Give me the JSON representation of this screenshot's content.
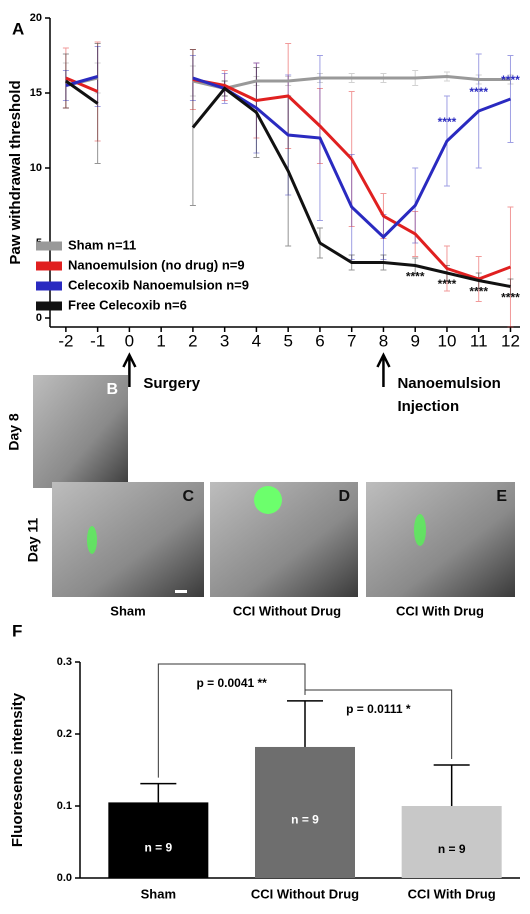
{
  "chart_data": [
    {
      "type": "line",
      "panel": "A",
      "y_label": "Paw withdrawal threshold",
      "x": [
        -2,
        -1,
        0,
        1,
        2,
        3,
        4,
        5,
        6,
        7,
        8,
        9,
        10,
        11,
        12
      ],
      "xlim": [
        -2.5,
        12.3
      ],
      "xticks": [
        -2,
        -1,
        0,
        1,
        2,
        3,
        4,
        5,
        6,
        7,
        8,
        9,
        10,
        11,
        12
      ],
      "ylim": [
        -0.6,
        20
      ],
      "yticks": [
        0,
        5,
        10,
        15,
        20
      ],
      "legend": "lower left",
      "series": [
        {
          "name": "Sham n=11",
          "color": "#999999",
          "values": [
            15.5,
            16.0,
            null,
            null,
            15.8,
            15.3,
            15.8,
            15.8,
            16.0,
            16.0,
            16.0,
            16.0,
            16.1,
            15.9,
            15.9
          ],
          "errors": [
            1.5,
            1.0,
            null,
            null,
            1.0,
            0.5,
            0.3,
            0.3,
            0.3,
            0.3,
            0.3,
            0.5,
            0.3,
            0.3,
            0.3
          ]
        },
        {
          "name": "Nanoemulsion (no drug) n=9",
          "color": "#e02020",
          "values": [
            16.0,
            15.1,
            null,
            null,
            15.9,
            15.5,
            14.5,
            14.8,
            12.8,
            10.6,
            6.8,
            5.6,
            3.3,
            2.6,
            3.4
          ],
          "errors": [
            2.0,
            3.3,
            null,
            null,
            2.0,
            1.0,
            2.5,
            3.5,
            2.5,
            4.5,
            1.5,
            1.5,
            1.5,
            1.5,
            4.0
          ]
        },
        {
          "name": "Celecoxib Nanoemulsion n=9",
          "color": "#2a2ac0",
          "values": [
            15.5,
            16.1,
            null,
            null,
            16.0,
            15.3,
            14.0,
            12.2,
            12.0,
            7.4,
            5.4,
            7.5,
            11.8,
            13.8,
            14.6
          ],
          "errors": [
            1.0,
            2.0,
            null,
            null,
            1.5,
            1.0,
            3.0,
            4.0,
            5.5,
            3.5,
            1.5,
            2.5,
            3.0,
            3.8,
            2.9
          ],
          "annotations": [
            {
              "x": 10,
              "text": "****",
              "position": "above"
            },
            {
              "x": 11,
              "text": "****",
              "position": "above"
            },
            {
              "x": 12,
              "text": "****",
              "position": "above"
            }
          ]
        },
        {
          "name": "Free Celecoxib n=6",
          "color": "#111111",
          "values": [
            15.8,
            14.3,
            null,
            null,
            12.7,
            15.3,
            13.7,
            9.8,
            5.0,
            3.7,
            3.7,
            3.5,
            3.0,
            2.5,
            2.1
          ],
          "errors": [
            1.8,
            4.0,
            null,
            null,
            5.2,
            0.5,
            3.0,
            5.0,
            1.0,
            0.5,
            0.5,
            0.5,
            0.5,
            0.5,
            0.5
          ],
          "annotations": [
            {
              "x": 9,
              "text": "****",
              "position": "below"
            },
            {
              "x": 10,
              "text": "****",
              "position": "below"
            },
            {
              "x": 11,
              "text": "****",
              "position": "below"
            },
            {
              "x": 12,
              "text": "****",
              "position": "below"
            }
          ]
        }
      ],
      "events": [
        {
          "x": 0,
          "text": [
            "Surgery"
          ]
        },
        {
          "x": 8,
          "text": [
            "Nanoemulsion",
            "Injection"
          ]
        }
      ]
    },
    {
      "type": "bar",
      "panel": "F",
      "y_label": "Fluoresence intensity",
      "categories": [
        "Sham",
        "CCI Without Drug",
        "CCI With Drug"
      ],
      "values": [
        0.105,
        0.182,
        0.1
      ],
      "errors": [
        0.026,
        0.064,
        0.057
      ],
      "bar_labels": [
        "n = 9",
        "n = 9",
        "n = 9"
      ],
      "colors": [
        "#000000",
        "#6e6e6e",
        "#c8c8c8"
      ],
      "ylim": [
        0,
        0.3
      ],
      "yticks": [
        {
          "value": 0,
          "label": "0.0"
        },
        0.1,
        0.2,
        0.3
      ],
      "comparisons": [
        {
          "from": 0,
          "to": 1,
          "text": "p = 0.0041 **"
        },
        {
          "from": 1,
          "to": 2,
          "text": "p = 0.0111 *"
        }
      ]
    }
  ],
  "images": {
    "day_labels": [
      "Day 8",
      "Day 11"
    ],
    "panels": [
      {
        "letter": "B"
      },
      {
        "letter": "C",
        "caption": "Sham"
      },
      {
        "letter": "D",
        "caption": "CCI Without Drug"
      },
      {
        "letter": "E",
        "caption": "CCI With Drug"
      }
    ]
  }
}
